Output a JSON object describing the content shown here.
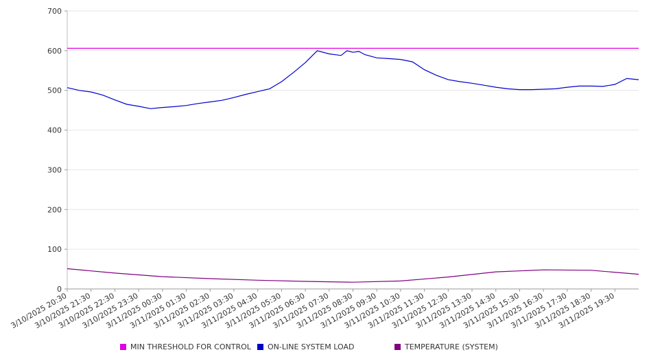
{
  "chart_data": {
    "type": "line",
    "title": "",
    "xlabel": "",
    "ylabel": "",
    "ylim": [
      0,
      700
    ],
    "yticks": [
      0,
      100,
      200,
      300,
      400,
      500,
      600,
      700
    ],
    "grid": true,
    "legend_position": "bottom",
    "xlim": [
      "3/10/2025 20:30",
      "3/11/2025 20:30"
    ],
    "xtick_labels": [
      "3/10/2025 20:30",
      "3/10/2025 21:30",
      "3/10/2025 22:30",
      "3/10/2025 23:30",
      "3/11/2025 00:30",
      "3/11/2025 01:30",
      "3/11/2025 02:30",
      "3/11/2025 03:30",
      "3/11/2025 04:30",
      "3/11/2025 05:30",
      "3/11/2025 06:30",
      "3/11/2025 07:30",
      "3/11/2025 08:30",
      "3/11/2025 09:30",
      "3/11/2025 10:30",
      "3/11/2025 11:30",
      "3/11/2025 12:30",
      "3/11/2025 13:30",
      "3/11/2025 14:30",
      "3/11/2025 15:30",
      "3/11/2025 16:30",
      "3/11/2025 17:30",
      "3/11/2025 18:30",
      "3/11/2025 19:30"
    ],
    "series": [
      {
        "name": "MIN THRESHOLD FOR CONTROL",
        "color": "#e000e0",
        "x": [
          "3/10/2025 20:30",
          "3/11/2025 20:30"
        ],
        "values": [
          606,
          606
        ]
      },
      {
        "name": "ON-LINE SYSTEM LOAD",
        "color": "#0000cc",
        "x": [
          "3/10/2025 20:30",
          "3/10/2025 21:00",
          "3/10/2025 21:30",
          "3/10/2025 22:00",
          "3/10/2025 22:30",
          "3/10/2025 23:00",
          "3/10/2025 23:30",
          "3/11/2025 00:00",
          "3/11/2025 00:30",
          "3/11/2025 01:00",
          "3/11/2025 01:30",
          "3/11/2025 02:00",
          "3/11/2025 02:30",
          "3/11/2025 03:00",
          "3/11/2025 03:30",
          "3/11/2025 04:00",
          "3/11/2025 04:30",
          "3/11/2025 05:00",
          "3/11/2025 05:30",
          "3/11/2025 06:00",
          "3/11/2025 06:30",
          "3/11/2025 07:00",
          "3/11/2025 07:30",
          "3/11/2025 08:00",
          "3/11/2025 08:15",
          "3/11/2025 08:30",
          "3/11/2025 08:45",
          "3/11/2025 09:00",
          "3/11/2025 09:30",
          "3/11/2025 10:00",
          "3/11/2025 10:30",
          "3/11/2025 11:00",
          "3/11/2025 11:30",
          "3/11/2025 12:00",
          "3/11/2025 12:30",
          "3/11/2025 13:00",
          "3/11/2025 13:30",
          "3/11/2025 14:00",
          "3/11/2025 14:30",
          "3/11/2025 15:00",
          "3/11/2025 15:30",
          "3/11/2025 16:00",
          "3/11/2025 16:30",
          "3/11/2025 17:00",
          "3/11/2025 17:30",
          "3/11/2025 18:00",
          "3/11/2025 18:30",
          "3/11/2025 19:00",
          "3/11/2025 19:30",
          "3/11/2025 20:00",
          "3/11/2025 20:30"
        ],
        "values": [
          507,
          500,
          496,
          488,
          476,
          465,
          460,
          454,
          457,
          459,
          462,
          467,
          471,
          475,
          482,
          490,
          497,
          504,
          522,
          545,
          570,
          600,
          592,
          588,
          600,
          596,
          598,
          590,
          582,
          580,
          578,
          572,
          552,
          538,
          527,
          522,
          518,
          513,
          508,
          504,
          502,
          502,
          503,
          504,
          508,
          511,
          511,
          510,
          515,
          530,
          527
        ]
      },
      {
        "name": "TEMPERATURE (SYSTEM)",
        "color": "#800080",
        "x": [
          "3/10/2025 20:30",
          "3/10/2025 22:30",
          "3/11/2025 00:30",
          "3/11/2025 02:30",
          "3/11/2025 04:30",
          "3/11/2025 06:30",
          "3/11/2025 08:30",
          "3/11/2025 10:30",
          "3/11/2025 12:30",
          "3/11/2025 14:30",
          "3/11/2025 16:30",
          "3/11/2025 18:30",
          "3/11/2025 20:30"
        ],
        "values": [
          51,
          40,
          31,
          26,
          22,
          19,
          17,
          20,
          30,
          43,
          48,
          47,
          37
        ]
      }
    ]
  }
}
